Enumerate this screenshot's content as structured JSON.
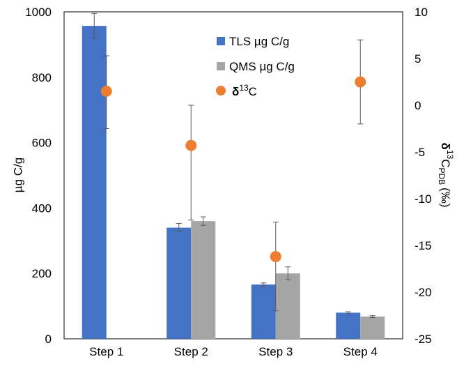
{
  "chart_data": {
    "type": "bar",
    "categories": [
      "Step 1",
      "Step 2",
      "Step 3",
      "Step 4"
    ],
    "series": [
      {
        "name": "TLS µg C/g",
        "color": "#4472c4",
        "values": [
          957,
          340,
          166,
          80
        ],
        "err_low": [
          919,
          329,
          161,
          77
        ],
        "err_high": [
          995,
          353,
          171,
          83
        ]
      },
      {
        "name": "QMS µg C/g",
        "color": "#a5a5a5",
        "values": [
          null,
          360,
          200,
          68
        ],
        "err_low": [
          null,
          347,
          180,
          65
        ],
        "err_high": [
          null,
          373,
          220,
          71
        ]
      }
    ],
    "secondary_series": {
      "name": "δ13C",
      "name_base": "δ",
      "name_sup": "13",
      "name_rest": "C",
      "color": "#ed7d31",
      "values": [
        1.5,
        -4.3,
        -16.2,
        2.5
      ],
      "err_low": [
        -2.5,
        -12.3,
        -22.0,
        -2.0
      ],
      "err_high": [
        5.3,
        0.0,
        -12.5,
        7.0
      ]
    },
    "ylabel": "µg C/g",
    "y2label": {
      "base": "δ",
      "sup": "13",
      "c": "C",
      "sub": "PDB",
      "unit": "(‰)"
    },
    "ylim": [
      0,
      1000
    ],
    "yticks": [
      "0",
      "200",
      "400",
      "600",
      "800",
      "1000"
    ],
    "y2lim": [
      -25,
      10
    ],
    "y2ticks": [
      "-25",
      "-20",
      "-15",
      "-10",
      "-5",
      "0",
      "5",
      "10"
    ],
    "legend_position": "top-center",
    "grid": false
  }
}
